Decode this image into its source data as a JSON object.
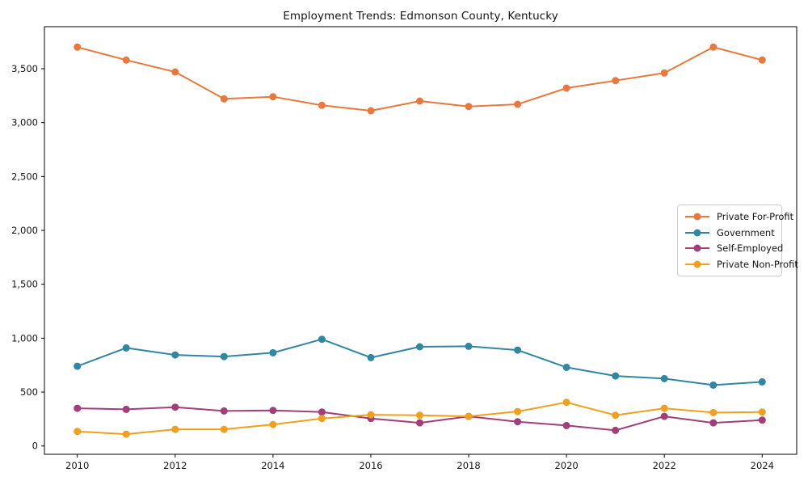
{
  "chart_data": {
    "type": "line",
    "title": "Employment Trends: Edmonson County, Kentucky",
    "x": [
      2010,
      2011,
      2012,
      2013,
      2014,
      2015,
      2016,
      2017,
      2018,
      2019,
      2020,
      2021,
      2022,
      2023,
      2024
    ],
    "series": [
      {
        "name": "Private For-Profit",
        "color": "#e8793e",
        "values": [
          3700,
          3580,
          3470,
          3220,
          3240,
          3160,
          3110,
          3200,
          3150,
          3170,
          3320,
          3390,
          3460,
          3700,
          3580
        ]
      },
      {
        "name": "Government",
        "color": "#3186a1",
        "values": [
          740,
          910,
          845,
          830,
          865,
          990,
          820,
          920,
          925,
          890,
          730,
          650,
          625,
          565,
          595
        ]
      },
      {
        "name": "Self-Employed",
        "color": "#a23e7a",
        "values": [
          350,
          340,
          360,
          325,
          330,
          315,
          255,
          215,
          275,
          225,
          190,
          145,
          275,
          215,
          240
        ]
      },
      {
        "name": "Private Non-Profit",
        "color": "#f0a01e",
        "values": [
          135,
          110,
          155,
          155,
          200,
          255,
          290,
          285,
          275,
          320,
          405,
          285,
          350,
          310,
          315
        ]
      }
    ],
    "xlabel": "",
    "ylabel": "",
    "xlim": [
      2009.328,
      2024.705
    ],
    "ylim": [
      -77,
      3890
    ],
    "x_ticks": [
      2010,
      2012,
      2014,
      2016,
      2018,
      2020,
      2022,
      2024
    ],
    "y_ticks": [
      0,
      500,
      1000,
      1500,
      2000,
      2500,
      3000,
      3500
    ],
    "y_tick_labels": [
      "0",
      "500",
      "1,000",
      "1,500",
      "2,000",
      "2,500",
      "3,000",
      "3,500"
    ],
    "grid": false,
    "legend_position": "center-right",
    "frame_color": "#000000",
    "text_color": "#141414"
  }
}
